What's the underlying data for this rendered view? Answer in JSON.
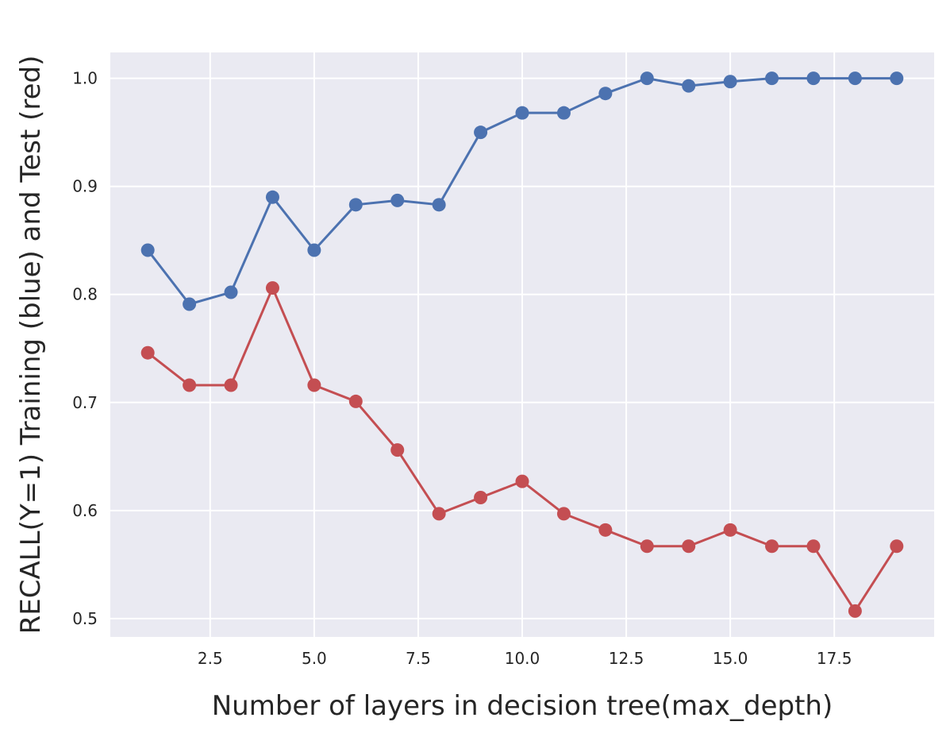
{
  "chart_data": {
    "type": "line",
    "title": "",
    "xlabel": "Number of layers in decision tree(max_depth)",
    "ylabel": "RECALL(Y=1) Training (blue) and Test (red)",
    "xlim": [
      0.1,
      19.9
    ],
    "ylim": [
      0.483,
      1.024
    ],
    "xticks": [
      2.5,
      5.0,
      7.5,
      10.0,
      12.5,
      15.0,
      17.5
    ],
    "xtick_labels": [
      "2.5",
      "5.0",
      "7.5",
      "10.0",
      "12.5",
      "15.0",
      "17.5"
    ],
    "yticks": [
      0.5,
      0.6,
      0.7,
      0.8,
      0.9,
      1.0
    ],
    "ytick_labels": [
      "0.5",
      "0.6",
      "0.7",
      "0.8",
      "0.9",
      "1.0"
    ],
    "grid": true,
    "background": "#eaeaf2",
    "x": [
      1,
      2,
      3,
      4,
      5,
      6,
      7,
      8,
      9,
      10,
      11,
      12,
      13,
      14,
      15,
      16,
      17,
      18,
      19
    ],
    "series": [
      {
        "color": "#4c72b0",
        "values": [
          0.841,
          0.791,
          0.802,
          0.89,
          0.841,
          0.883,
          0.887,
          0.883,
          0.95,
          0.968,
          0.968,
          0.986,
          1.0,
          0.993,
          0.997,
          1.0,
          1.0,
          1.0,
          1.0
        ]
      },
      {
        "color": "#c44e52",
        "values": [
          0.746,
          0.716,
          0.716,
          0.806,
          0.716,
          0.701,
          0.656,
          0.597,
          0.612,
          0.627,
          0.597,
          0.582,
          0.567,
          0.567,
          0.582,
          0.567,
          0.567,
          0.507,
          0.567
        ]
      }
    ]
  }
}
